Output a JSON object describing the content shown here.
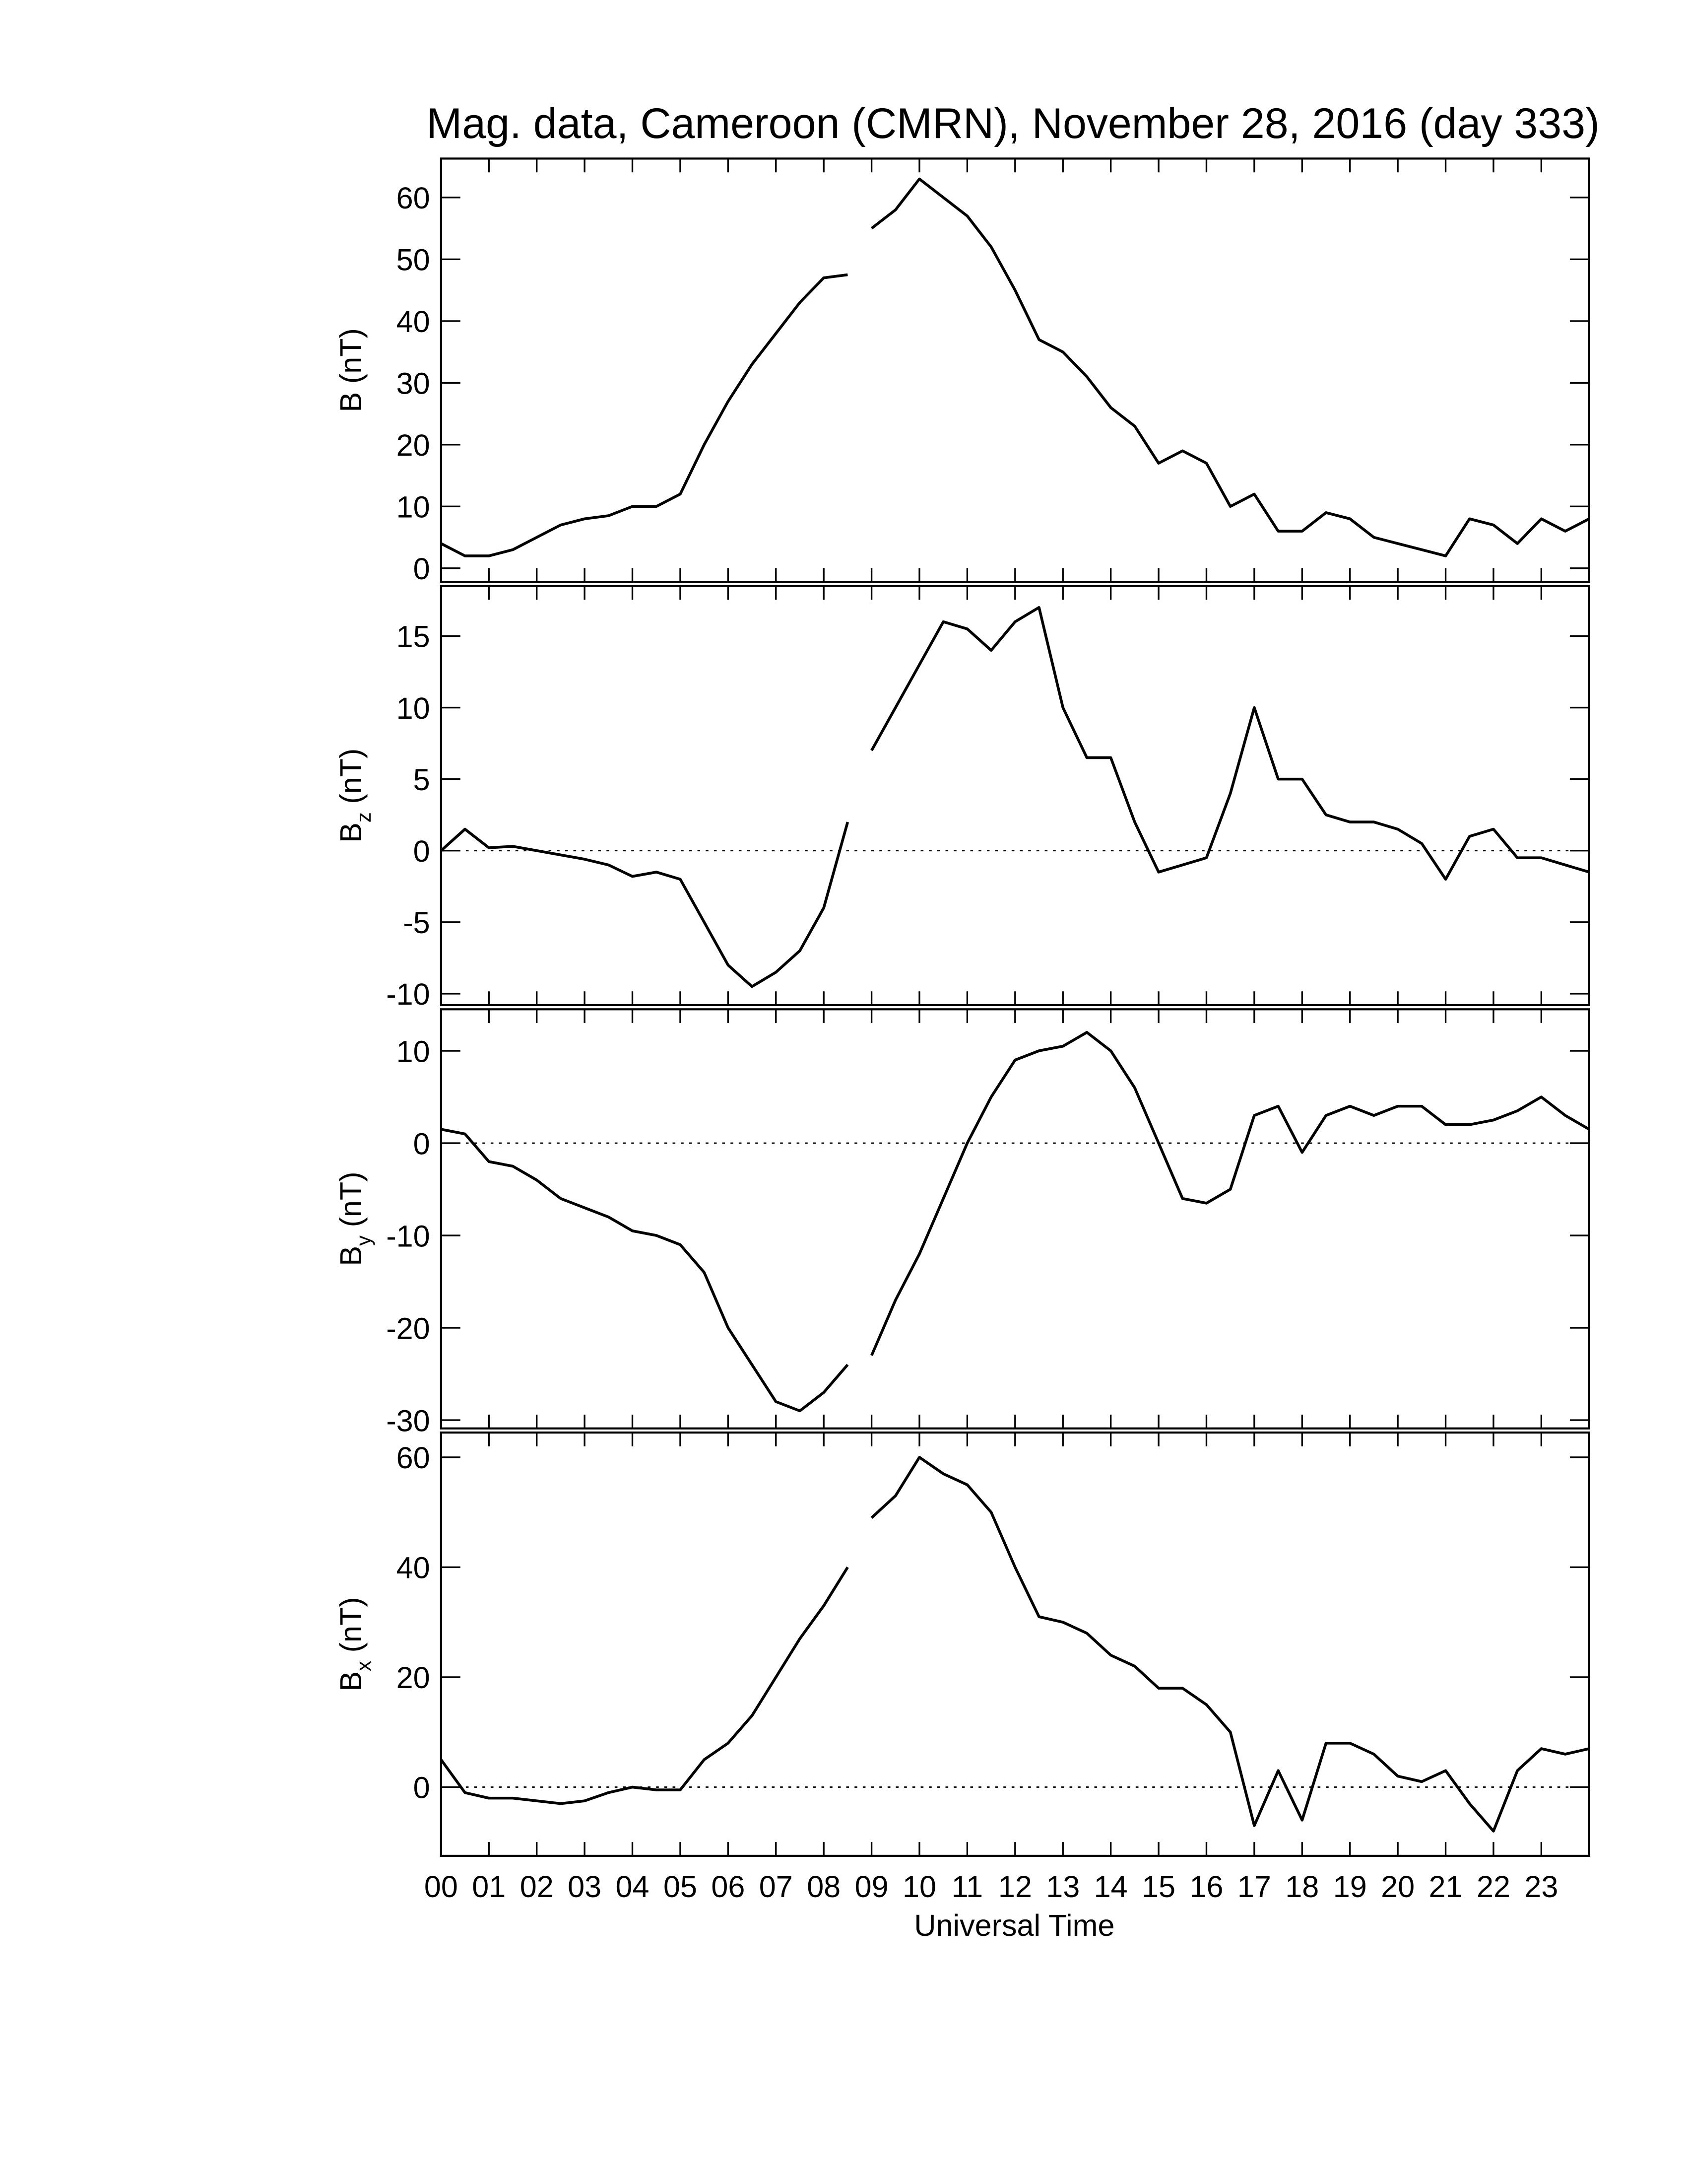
{
  "chart_data": {
    "type": "line",
    "title": "Mag. data, Cameroon (CMRN), November 28, 2016 (day 333)",
    "xlabel": "Universal Time",
    "xlim": [
      0,
      24
    ],
    "xticks": [
      {
        "value": 0,
        "label": "00"
      },
      {
        "value": 1,
        "label": "01"
      },
      {
        "value": 2,
        "label": "02"
      },
      {
        "value": 3,
        "label": "03"
      },
      {
        "value": 4,
        "label": "04"
      },
      {
        "value": 5,
        "label": "05"
      },
      {
        "value": 6,
        "label": "06"
      },
      {
        "value": 7,
        "label": "07"
      },
      {
        "value": 8,
        "label": "08"
      },
      {
        "value": 9,
        "label": "09"
      },
      {
        "value": 10,
        "label": "10"
      },
      {
        "value": 11,
        "label": "11"
      },
      {
        "value": 12,
        "label": "12"
      },
      {
        "value": 13,
        "label": "13"
      },
      {
        "value": 14,
        "label": "14"
      },
      {
        "value": 15,
        "label": "15"
      },
      {
        "value": 16,
        "label": "16"
      },
      {
        "value": 17,
        "label": "17"
      },
      {
        "value": 18,
        "label": "18"
      },
      {
        "value": 19,
        "label": "19"
      },
      {
        "value": 20,
        "label": "20"
      },
      {
        "value": 21,
        "label": "21"
      },
      {
        "value": 22,
        "label": "22"
      },
      {
        "value": 23,
        "label": "23"
      }
    ],
    "x": [
      0,
      0.5,
      1,
      1.5,
      2,
      2.5,
      3,
      3.5,
      4,
      4.5,
      5,
      5.5,
      6,
      6.5,
      7,
      7.5,
      8,
      8.5,
      8.9,
      9,
      9.5,
      10,
      10.5,
      11,
      11.5,
      12,
      12.5,
      13,
      13.5,
      14,
      14.5,
      15,
      15.5,
      16,
      16.5,
      17,
      17.5,
      18,
      18.5,
      19,
      19.5,
      20,
      20.5,
      21,
      21.5,
      22,
      22.5,
      23,
      23.5,
      24
    ],
    "color": "#000000",
    "panels": [
      {
        "ylabel": "B",
        "ylabel_unit": "(nT)",
        "ylim": [
          -2.2,
          66.3
        ],
        "yticks": [
          0,
          10,
          20,
          30,
          40,
          50,
          60
        ],
        "zero_line": false,
        "values": [
          4,
          2,
          2,
          3,
          5,
          7,
          8,
          8.5,
          10,
          10,
          12,
          20,
          27,
          33,
          38,
          43,
          47,
          47.5,
          null,
          55,
          58,
          63,
          60,
          57,
          52,
          45,
          37,
          35,
          31,
          26,
          23,
          17,
          19,
          17,
          10,
          12,
          6,
          6,
          9,
          8,
          5,
          4,
          3,
          2,
          8,
          7,
          4,
          8,
          6,
          8
        ]
      },
      {
        "ylabel": "B",
        "ylabel_sub": "z",
        "ylabel_unit": "(nT)",
        "ylim": [
          -10.8,
          18.5
        ],
        "yticks": [
          -10,
          -5,
          0,
          5,
          10,
          15
        ],
        "zero_line": true,
        "values": [
          0,
          1.5,
          0.2,
          0.3,
          0,
          -0.3,
          -0.6,
          -1,
          -1.8,
          -1.5,
          -2,
          -5,
          -8,
          -9.5,
          -8.5,
          -7,
          -4,
          2,
          null,
          7,
          10,
          13,
          16,
          15.5,
          14,
          16,
          17,
          10,
          6.5,
          6.5,
          2,
          -1.5,
          -1,
          -0.5,
          4,
          10,
          5,
          5,
          2.5,
          2,
          2,
          1.5,
          0.5,
          -2,
          1,
          1.5,
          -0.5,
          -0.5,
          -1,
          -1.5
        ]
      },
      {
        "ylabel": "B",
        "ylabel_sub": "y",
        "ylabel_unit": "(nT)",
        "ylim": [
          -30.9,
          14.5
        ],
        "yticks": [
          -30,
          -20,
          -10,
          0,
          10
        ],
        "zero_line": true,
        "values": [
          1.5,
          1,
          -2,
          -2.5,
          -4,
          -6,
          -7,
          -8,
          -9.5,
          -10,
          -11,
          -14,
          -20,
          -24,
          -28,
          -29,
          -27,
          -24,
          null,
          -23,
          -17,
          -12,
          -6,
          0,
          5,
          9,
          10,
          10.5,
          12,
          10,
          6,
          0,
          -6,
          -6.5,
          -5,
          3,
          4,
          -1,
          3,
          4,
          3,
          4,
          4,
          2,
          2,
          2.5,
          3.5,
          5,
          3,
          1.5
        ]
      },
      {
        "ylabel": "B",
        "ylabel_sub": "x",
        "ylabel_unit": "(nT)",
        "ylim": [
          -12.5,
          64.5
        ],
        "yticks": [
          0,
          20,
          40,
          60
        ],
        "zero_line": true,
        "values": [
          5,
          -1,
          -2,
          -2,
          -2.5,
          -3,
          -2.5,
          -1,
          0,
          -0.5,
          -0.5,
          5,
          8,
          13,
          20,
          27,
          33,
          40,
          null,
          49,
          53,
          60,
          57,
          55,
          50,
          40,
          31,
          30,
          28,
          24,
          22,
          18,
          18,
          15,
          10,
          -7,
          3,
          -6,
          8,
          8,
          6,
          2,
          1,
          3,
          -3,
          -8,
          3,
          7,
          6,
          7
        ]
      }
    ]
  }
}
